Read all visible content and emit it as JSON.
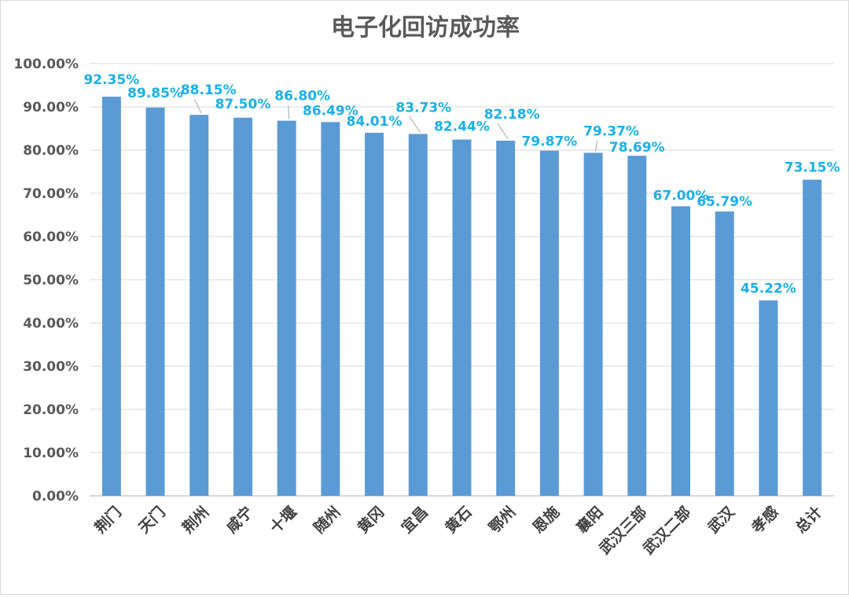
{
  "chart_data": {
    "type": "bar",
    "title": "电子化回访成功率",
    "xlabel": "",
    "ylabel": "",
    "ylim": [
      0,
      100
    ],
    "y_ticks": [
      "0.00%",
      "10.00%",
      "20.00%",
      "30.00%",
      "40.00%",
      "50.00%",
      "60.00%",
      "70.00%",
      "80.00%",
      "90.00%",
      "100.00%"
    ],
    "grid": true,
    "legend": "none",
    "categories": [
      "荆门",
      "天门",
      "荆州",
      "咸宁",
      "十堰",
      "随州",
      "黄冈",
      "宜昌",
      "黄石",
      "鄂州",
      "恩施",
      "襄阳",
      "武汉三部",
      "武汉二部",
      "武汉",
      "孝感",
      "总计"
    ],
    "values": [
      92.35,
      89.85,
      88.15,
      87.5,
      86.8,
      86.49,
      84.01,
      83.73,
      82.44,
      82.18,
      79.87,
      79.37,
      78.69,
      67.0,
      65.79,
      45.22,
      73.15
    ],
    "data_labels": [
      "92.35%",
      "89.85%",
      "88.15%",
      "87.50%",
      "86.80%",
      "86.49%",
      "84.01%",
      "83.73%",
      "82.44%",
      "82.18%",
      "79.87%",
      "79.37%",
      "78.69%",
      "67.00%",
      "65.79%",
      "45.22%",
      "73.15%"
    ],
    "colors": {
      "bar": "#5b9bd5",
      "data_label": "#1ab0e8",
      "grid": "#d9d9d9",
      "title": "#595959"
    }
  }
}
